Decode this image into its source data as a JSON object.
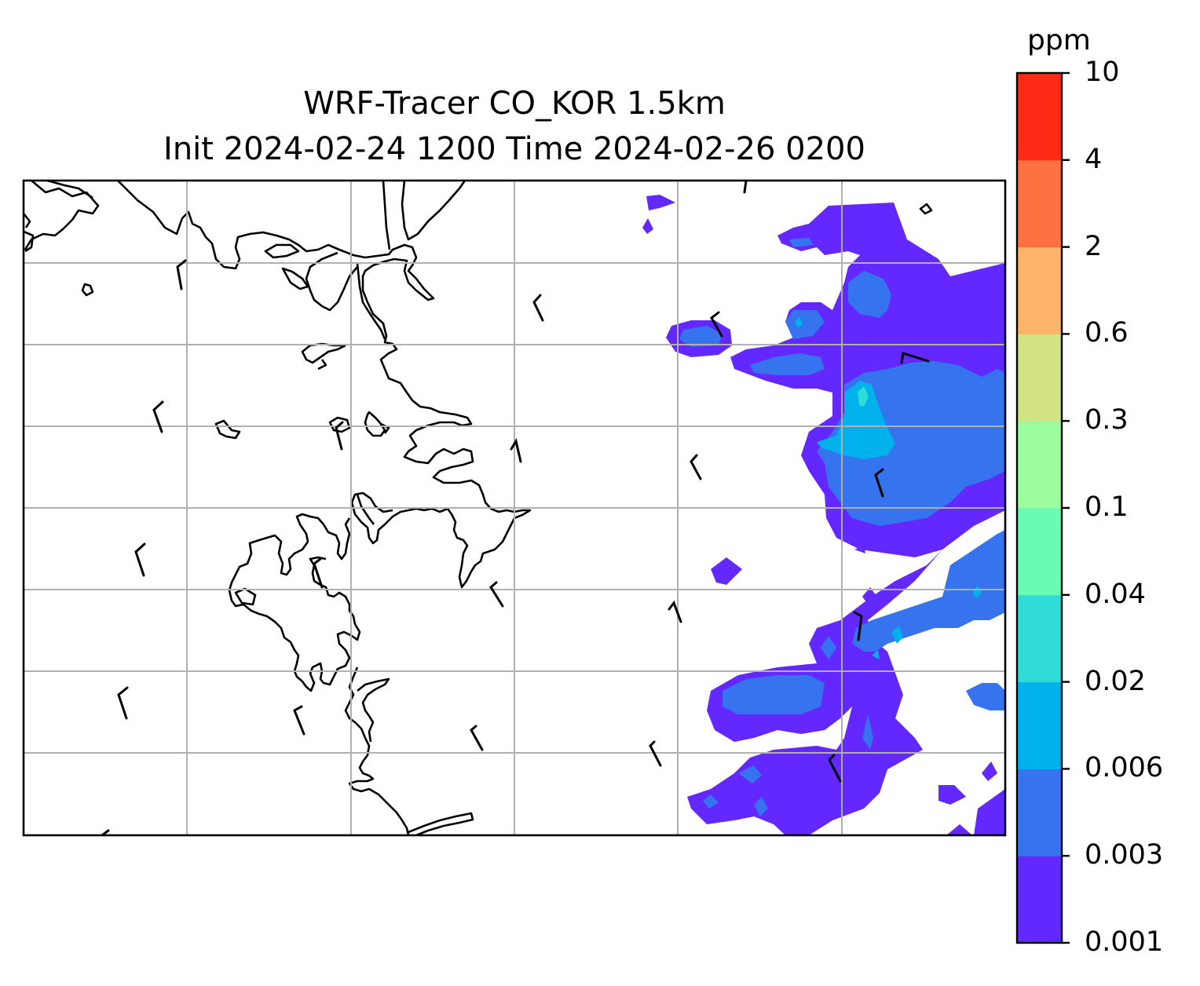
{
  "title_line1": "WRF-Tracer CO_KOR 1.5km",
  "title_line2": "Init 2024-02-24 1200 Time 2024-02-26 0200",
  "colorbar": {
    "unit": "ppm",
    "ticks": [
      "0.001",
      "0.003",
      "0.006",
      "0.02",
      "0.04",
      "0.1",
      "0.3",
      "0.6",
      "2",
      "4",
      "10"
    ],
    "colors": [
      "#6228ff",
      "#3573ef",
      "#00b2ec",
      "#30dcd6",
      "#69fbb4",
      "#9bfd9d",
      "#d1e383",
      "#feb468",
      "#ff7141",
      "#ff2a16"
    ]
  },
  "map": {
    "gridlines": "on",
    "coastlines": "black",
    "wind_barbs": "black"
  }
}
